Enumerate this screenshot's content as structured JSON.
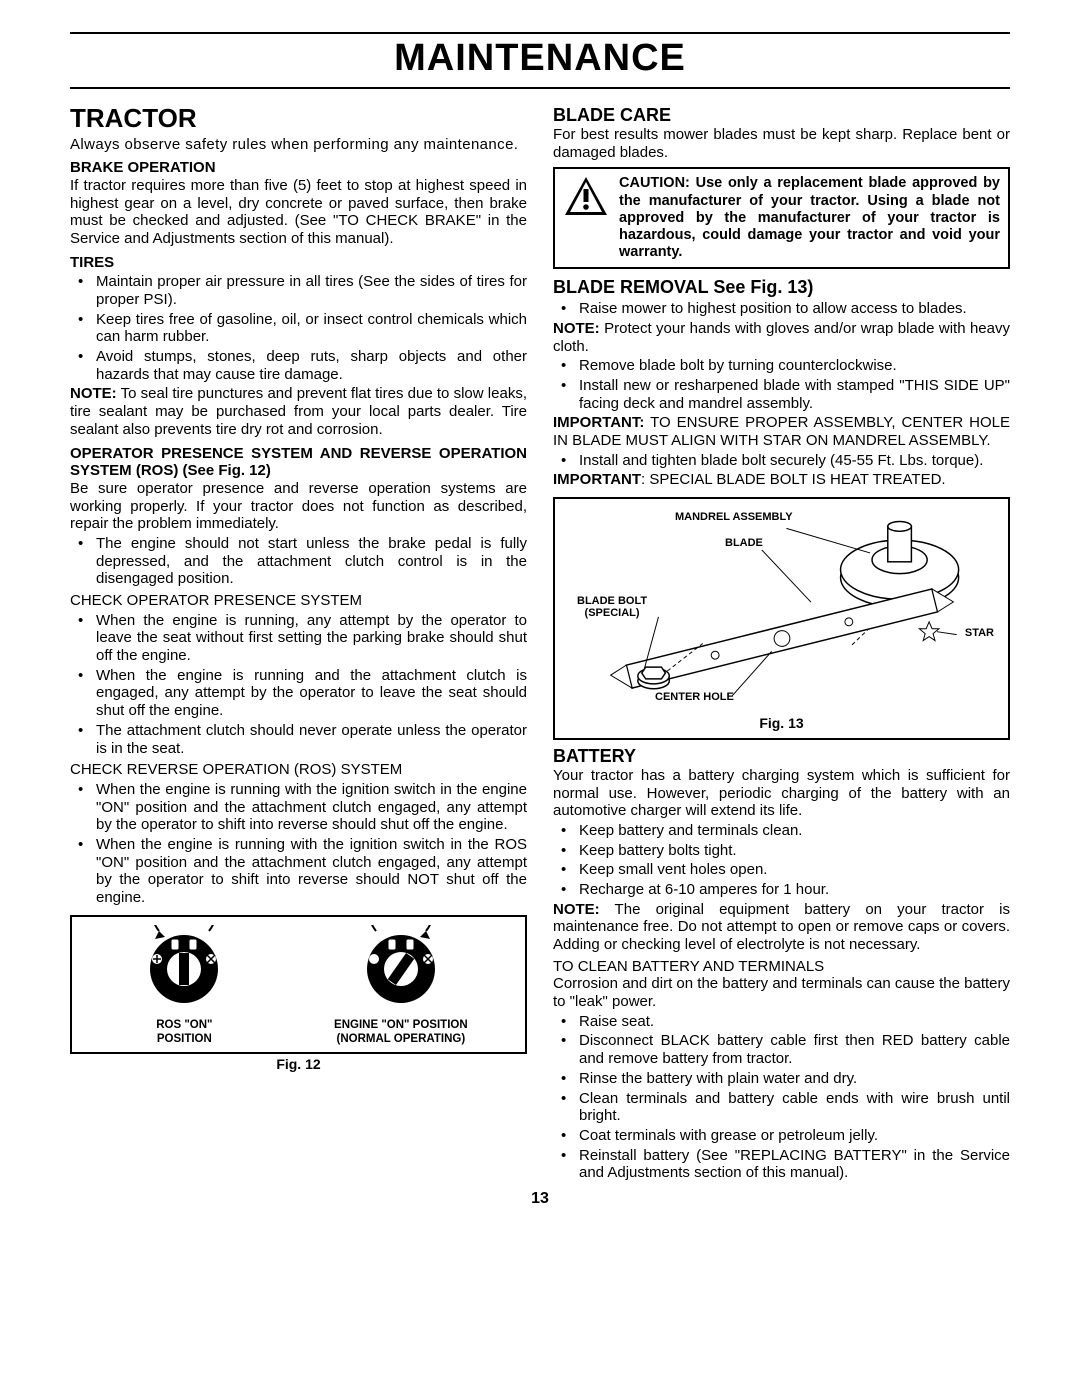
{
  "pageTitle": "MAINTENANCE",
  "pageNumber": "13",
  "left": {
    "tractor": {
      "heading": "TRACTOR",
      "intro": "Always observe safety rules when performing any maintenance.",
      "brake": {
        "heading": "BRAKE OPERATION",
        "body": "If tractor requires more than five (5) feet to stop at highest speed in highest gear on a level, dry concrete or paved surface, then brake must be checked and adjusted. (See \"TO CHECK BRAKE\" in the Service and Adjustments section of this manual)."
      },
      "tires": {
        "heading": "TIRES",
        "items": [
          "Maintain proper air pressure in all tires (See the sides of tires for proper PSI).",
          "Keep tires free of gasoline, oil, or insect control chemicals which can harm rubber.",
          "Avoid stumps, stones, deep ruts, sharp objects and other hazards that may cause tire damage."
        ],
        "noteLabel": "NOTE:",
        "note": " To seal tire punctures and prevent flat tires due to slow leaks, tire sealant may be purchased from your local parts dealer. Tire sealant also prevents tire dry rot and corrosion."
      },
      "ros": {
        "heading": "OPERATOR PRESENCE SYSTEM AND REVERSE OPERATION SYSTEM (ROS) (See Fig. 12)",
        "intro": "Be sure operator presence and reverse operation systems are working properly.  If your tractor does not function as described, repair the problem immediately.",
        "items1": [
          "The engine should not start unless the brake pedal is fully depressed, and the attachment clutch control is in the disengaged position."
        ],
        "check1": "CHECK OPERATOR PRESENCE SYSTEM",
        "items2": [
          "When the engine is running, any attempt by the operator to leave the seat without first setting the parking brake should shut off the engine.",
          "When the engine is running and the attachment clutch is engaged, any attempt by the operator to leave the seat should shut off the engine.",
          "The attachment clutch should never operate unless the operator is in the seat."
        ],
        "check2": "CHECK REVERSE OPERATION (ROS) SYSTEM",
        "items3": [
          "When the engine is running with the ignition switch in the engine \"ON\" position and the attachment clutch engaged, any attempt by the operator to shift into reverse should shut off the engine.",
          "When the engine is running with the ignition switch in the ROS \"ON\" position and the attachment clutch engaged, any attempt by the operator to shift into reverse should NOT shut off the engine."
        ]
      },
      "fig12": {
        "leftLabel": "ROS \"ON\"\nPOSITION",
        "rightLabel": "ENGINE \"ON\" POSITION\n(NORMAL OPERATING)",
        "caption": "Fig. 12"
      }
    }
  },
  "right": {
    "bladeCare": {
      "heading": "BLADE CARE",
      "intro": "For best results mower blades must be kept sharp.  Replace bent or damaged blades.",
      "caution": "CAUTION: Use only a replacement blade approved by the manufacturer of your tractor. Using a blade not approved by the manufacturer of your tractor is hazardous, could damage your tractor and void your warranty."
    },
    "bladeRemoval": {
      "heading": "BLADE REMOVAL See Fig. 13)",
      "item1": "Raise mower to highest position to allow access to blades.",
      "noteLabel": "NOTE:",
      "note": " Protect your hands with gloves and/or wrap blade with heavy cloth.",
      "items2": [
        "Remove blade bolt by turning counterclockwise.",
        "Install new or resharpened blade with stamped \"THIS SIDE UP\" facing deck and mandrel assembly."
      ],
      "importantLabel": "IMPORTANT:",
      "important": " TO ENSURE PROPER ASSEMBLY, CENTER HOLE IN BLADE MUST ALIGN WITH STAR ON MANDREL ASSEMBLY.",
      "item3": "Install and tighten blade bolt securely (45-55 Ft. Lbs. torque).",
      "important2Label": "IMPORTANT",
      "important2": ":  SPECIAL BLADE BOLT IS HEAT TREATED.",
      "fig13": {
        "labels": {
          "mandrel": "MANDREL ASSEMBLY",
          "blade": "BLADE",
          "bolt": "BLADE BOLT\n(SPECIAL)",
          "star": "STAR",
          "center": "CENTER HOLE"
        },
        "caption": "Fig. 13"
      }
    },
    "battery": {
      "heading": "BATTERY",
      "intro": "Your tractor has a battery charging system which is sufficient for normal use.  However, periodic charging of the battery with an automotive charger will extend its life.",
      "items": [
        "Keep battery and terminals clean.",
        "Keep battery bolts tight.",
        "Keep small vent holes open.",
        "Recharge at  6-10 amperes for 1 hour."
      ],
      "noteLabel": "NOTE:",
      "note": " The original equipment battery on your tractor is maintenance free.  Do not attempt to open or remove caps or covers.  Adding or checking level of electrolyte is not necessary.",
      "cleanHeading": "TO CLEAN BATTERY AND TERMINALS",
      "cleanIntro": "Corrosion and dirt on the battery and terminals can cause the battery to \"leak\" power.",
      "cleanItems": [
        "Raise seat.",
        "Disconnect BLACK battery cable first  then RED  battery cable and remove battery from tractor.",
        "Rinse the battery with plain water and dry.",
        "Clean terminals and battery cable ends with wire brush until bright.",
        "Coat terminals with grease or petroleum jelly.",
        "Reinstall battery (See \"REPLACING BATTERY\" in the Service and Adjustments section of this manual)."
      ]
    }
  }
}
